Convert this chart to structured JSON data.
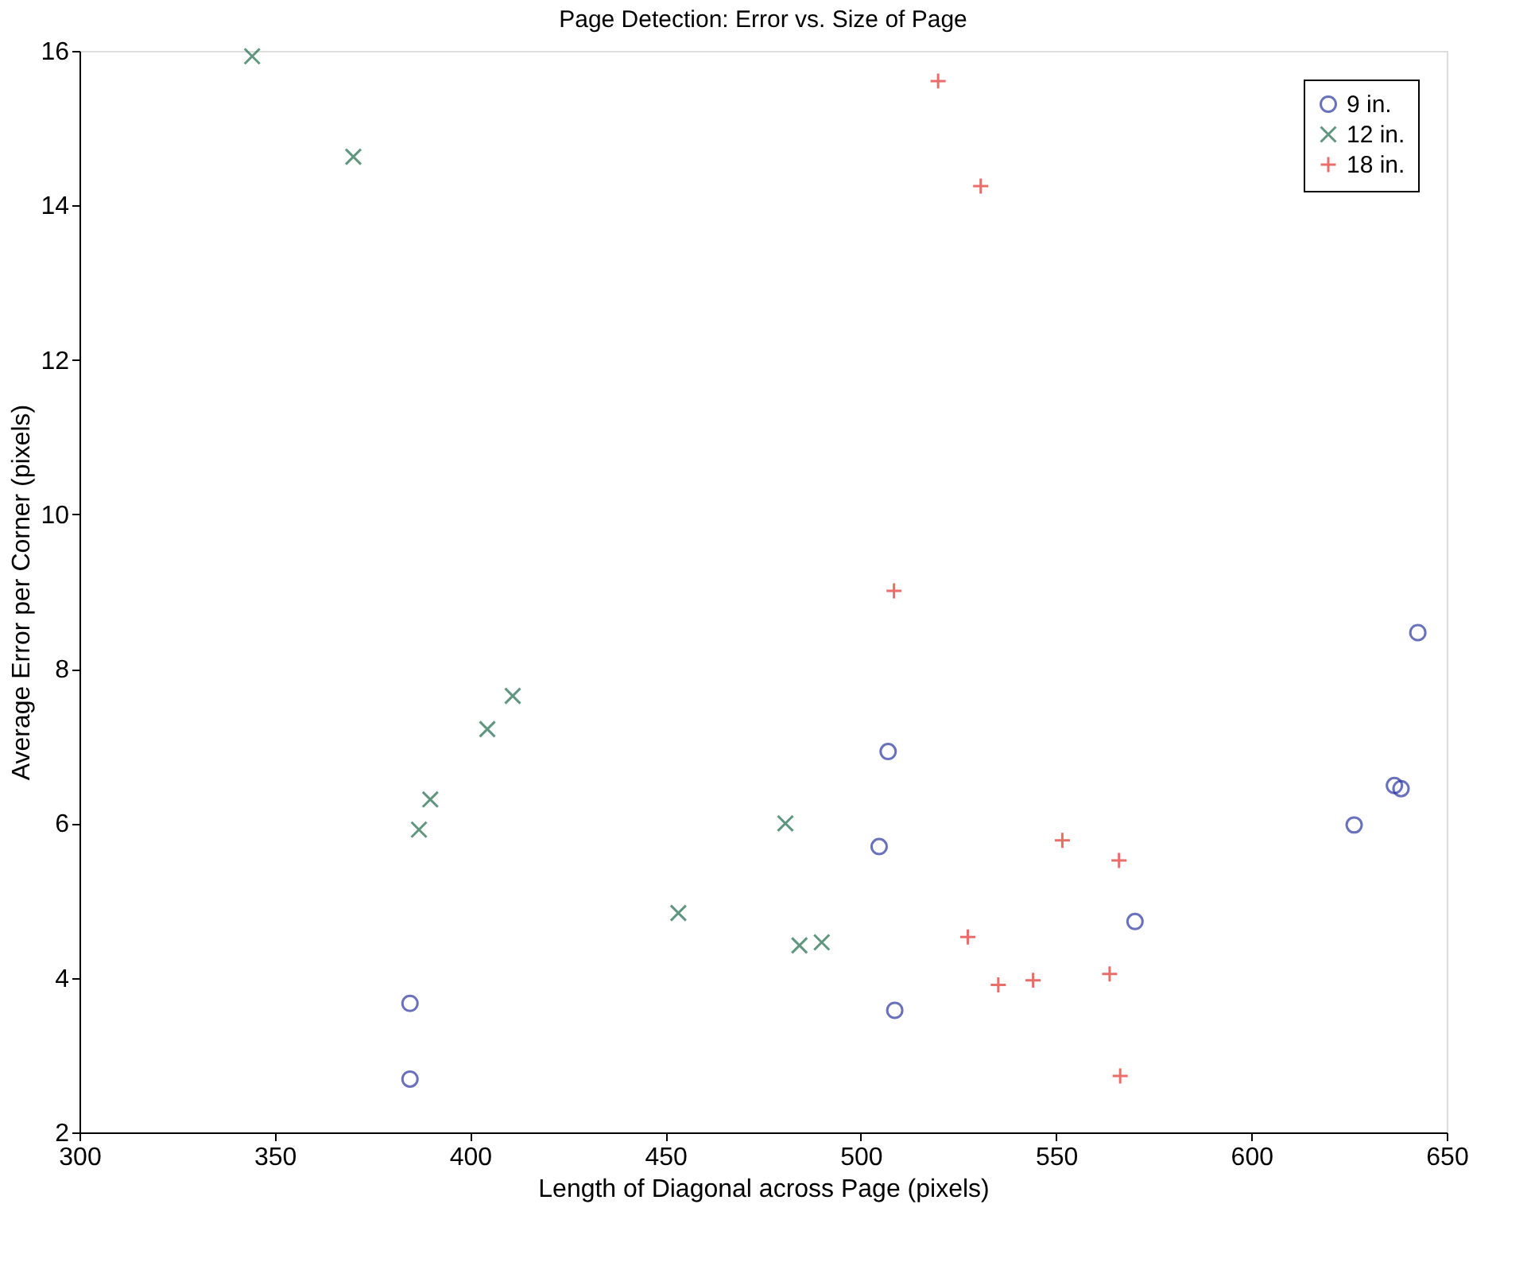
{
  "chart_data": {
    "type": "scatter",
    "title": "Page Detection: Error vs. Size of Page",
    "xlabel": "Length of Diagonal across Page (pixels)",
    "ylabel": "Average Error per Corner (pixels)",
    "xlim": [
      300,
      650
    ],
    "xticks": [
      300,
      350,
      400,
      450,
      500,
      550,
      600,
      650
    ],
    "ylim": [
      2,
      16
    ],
    "yticks": [
      2,
      4,
      6,
      8,
      10,
      12,
      14,
      16
    ],
    "grid": false,
    "legend": "top right",
    "series": [
      {
        "name": "9 in.",
        "color": "#2a35a0",
        "marker": "circle",
        "x": [
          384.6,
          384.6,
          507.0,
          504.7,
          508.7,
          570.2,
          626.3,
          636.6,
          638.3,
          642.6
        ],
        "values": [
          3.67,
          2.69,
          6.93,
          5.7,
          3.58,
          4.73,
          5.98,
          6.49,
          6.45,
          8.47
        ]
      },
      {
        "name": "12 in.",
        "color": "#1e6b4a",
        "marker": "cross",
        "x": [
          344.2,
          370.1,
          386.9,
          389.8,
          404.4,
          410.9,
          453.3,
          480.7,
          484.3,
          490.0
        ],
        "values": [
          15.93,
          14.63,
          5.92,
          6.31,
          7.22,
          7.65,
          4.84,
          6.0,
          4.42,
          4.46
        ]
      },
      {
        "name": "18 in.",
        "color": "#e0302a",
        "marker": "plus",
        "x": [
          519.8,
          530.7,
          508.5,
          551.6,
          566.1,
          527.4,
          535.2,
          544.1,
          563.7,
          566.4
        ],
        "values": [
          15.61,
          14.25,
          9.01,
          5.78,
          5.52,
          4.53,
          3.91,
          3.97,
          4.05,
          2.73
        ]
      }
    ]
  }
}
